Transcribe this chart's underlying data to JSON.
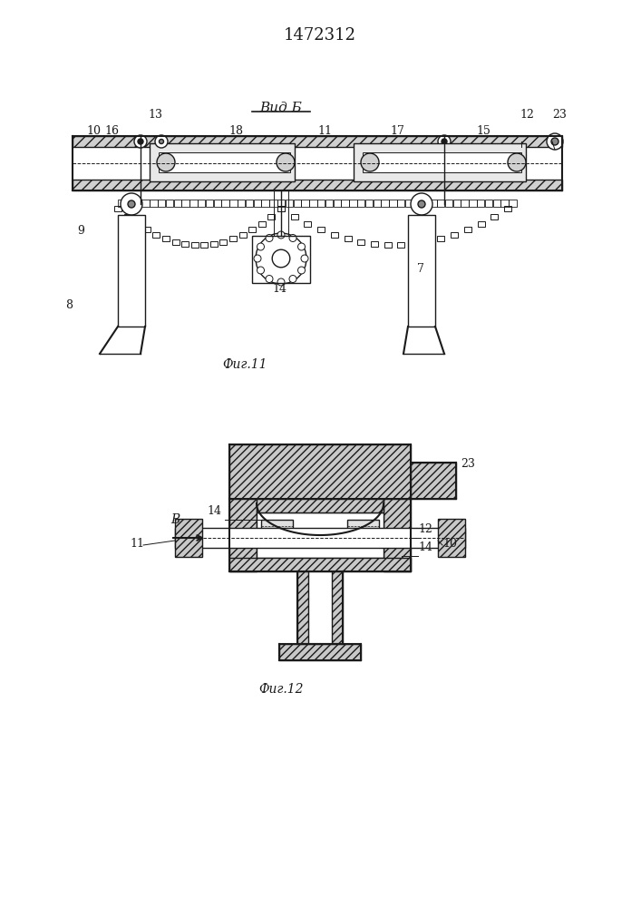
{
  "title": "1472312",
  "fig11_label": "Фиг.11",
  "fig12_label": "Фиг.12",
  "vid_b_label": "Вид Б",
  "view_b_label": "В",
  "bg_color": "#f5f5f0",
  "line_color": "#1a1a1a",
  "hatch_color": "#1a1a1a",
  "fig_width": 7.07,
  "fig_height": 10.0
}
